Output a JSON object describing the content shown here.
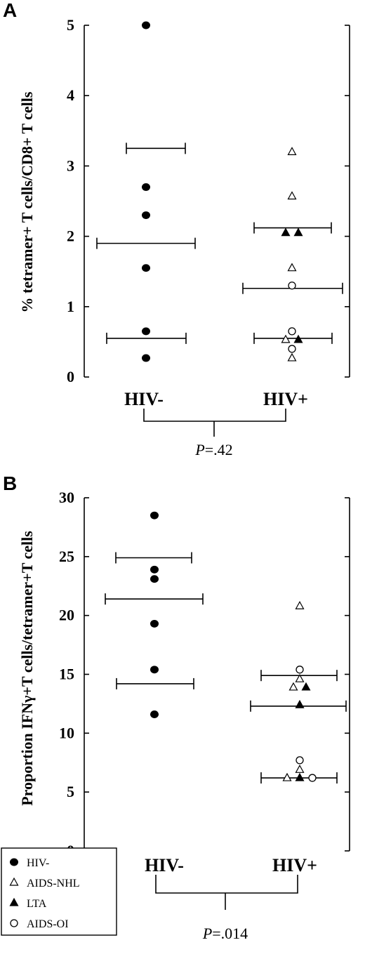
{
  "legend": [
    {
      "label": "HIV-",
      "marker": "filled-circle"
    },
    {
      "label": "AIDS-NHL",
      "marker": "open-triangle"
    },
    {
      "label": "LTA",
      "marker": "filled-triangle"
    },
    {
      "label": "AIDS-OI",
      "marker": "open-circle"
    }
  ],
  "chart_data": [
    {
      "panel": "A",
      "type": "scatter",
      "ylabel": "% tetramer+ T cells/CD8+ T cells",
      "categories": [
        "HIV-",
        "HIV+"
      ],
      "ylim": [
        0,
        5
      ],
      "yticks": [
        0,
        1,
        2,
        3,
        4,
        5
      ],
      "points": [
        {
          "group": "HIV-",
          "marker": "filled-circle",
          "y": 5.0
        },
        {
          "group": "HIV-",
          "marker": "filled-circle",
          "y": 2.7
        },
        {
          "group": "HIV-",
          "marker": "filled-circle",
          "y": 2.3
        },
        {
          "group": "HIV-",
          "marker": "filled-circle",
          "y": 1.55
        },
        {
          "group": "HIV-",
          "marker": "filled-circle",
          "y": 0.65
        },
        {
          "group": "HIV-",
          "marker": "filled-circle",
          "y": 0.27
        },
        {
          "group": "HIV+",
          "marker": "open-triangle",
          "y": 3.2,
          "offset": 0
        },
        {
          "group": "HIV+",
          "marker": "open-triangle",
          "y": 2.57,
          "offset": 0
        },
        {
          "group": "HIV+",
          "marker": "filled-triangle",
          "y": 2.05,
          "offset": -1
        },
        {
          "group": "HIV+",
          "marker": "filled-triangle",
          "y": 2.05,
          "offset": 1
        },
        {
          "group": "HIV+",
          "marker": "open-triangle",
          "y": 1.55,
          "offset": 0
        },
        {
          "group": "HIV+",
          "marker": "open-circle",
          "y": 1.3,
          "offset": 0
        },
        {
          "group": "HIV+",
          "marker": "open-circle",
          "y": 0.65,
          "offset": 0
        },
        {
          "group": "HIV+",
          "marker": "open-triangle",
          "y": 0.53,
          "offset": -1
        },
        {
          "group": "HIV+",
          "marker": "filled-triangle",
          "y": 0.53,
          "offset": 1
        },
        {
          "group": "HIV+",
          "marker": "open-circle",
          "y": 0.4,
          "offset": 0
        },
        {
          "group": "HIV+",
          "marker": "open-triangle",
          "y": 0.27,
          "offset": 0
        }
      ],
      "summary_lines": [
        {
          "group": "HIV-",
          "y": 3.25
        },
        {
          "group": "HIV-",
          "y": 1.9
        },
        {
          "group": "HIV-",
          "y": 0.55
        },
        {
          "group": "HIV+",
          "y": 2.12
        },
        {
          "group": "HIV+",
          "y": 1.26
        },
        {
          "group": "HIV+",
          "y": 0.55
        }
      ],
      "pvalue": {
        "prefix": "P",
        "value": "=.42"
      }
    },
    {
      "panel": "B",
      "type": "scatter",
      "ylabel": "Proportion IFNγ+T cells/tetramer+T cells",
      "categories": [
        "HIV-",
        "HIV+"
      ],
      "ylim": [
        0,
        30
      ],
      "yticks": [
        0,
        5,
        10,
        15,
        20,
        25,
        30
      ],
      "points": [
        {
          "group": "HIV-",
          "marker": "filled-circle",
          "y": 28.5
        },
        {
          "group": "HIV-",
          "marker": "filled-circle",
          "y": 23.9
        },
        {
          "group": "HIV-",
          "marker": "filled-circle",
          "y": 23.1
        },
        {
          "group": "HIV-",
          "marker": "filled-circle",
          "y": 19.3
        },
        {
          "group": "HIV-",
          "marker": "filled-circle",
          "y": 15.4
        },
        {
          "group": "HIV-",
          "marker": "filled-circle",
          "y": 11.6
        },
        {
          "group": "HIV+",
          "marker": "open-triangle",
          "y": 20.8,
          "offset": 0
        },
        {
          "group": "HIV+",
          "marker": "open-circle",
          "y": 15.4,
          "offset": 0
        },
        {
          "group": "HIV+",
          "marker": "open-triangle",
          "y": 14.6,
          "offset": 0
        },
        {
          "group": "HIV+",
          "marker": "open-triangle",
          "y": 13.9,
          "offset": -1
        },
        {
          "group": "HIV+",
          "marker": "filled-triangle",
          "y": 13.9,
          "offset": 1
        },
        {
          "group": "HIV+",
          "marker": "filled-triangle",
          "y": 12.4,
          "offset": 0
        },
        {
          "group": "HIV+",
          "marker": "open-circle",
          "y": 7.7,
          "offset": 0
        },
        {
          "group": "HIV+",
          "marker": "open-triangle",
          "y": 6.9,
          "offset": 0
        },
        {
          "group": "HIV+",
          "marker": "open-triangle",
          "y": 6.2,
          "offset": -2
        },
        {
          "group": "HIV+",
          "marker": "filled-triangle",
          "y": 6.2,
          "offset": 0
        },
        {
          "group": "HIV+",
          "marker": "open-circle",
          "y": 6.2,
          "offset": 2
        }
      ],
      "summary_lines": [
        {
          "group": "HIV-",
          "y": 24.9
        },
        {
          "group": "HIV-",
          "y": 21.4
        },
        {
          "group": "HIV-",
          "y": 14.2
        },
        {
          "group": "HIV+",
          "y": 14.9
        },
        {
          "group": "HIV+",
          "y": 12.3
        },
        {
          "group": "HIV+",
          "y": 6.2
        }
      ],
      "pvalue": {
        "prefix": "P",
        "value": "=.014"
      }
    }
  ]
}
